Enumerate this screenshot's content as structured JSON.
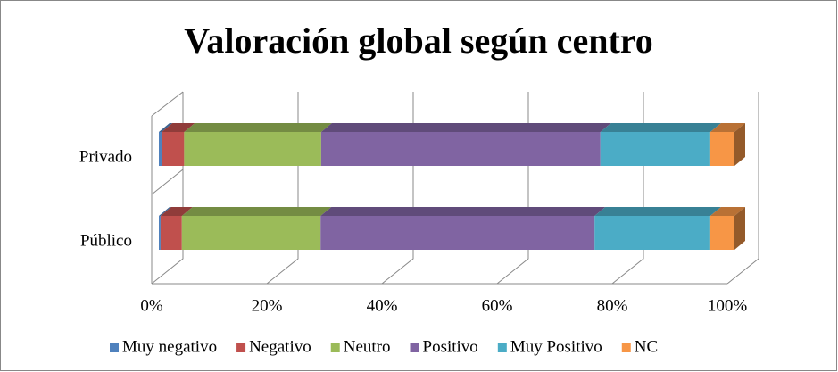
{
  "chart_data": {
    "type": "stacked_bar_horizontal_3d",
    "title": "Valoración global según centro",
    "categories": [
      "Privado",
      "Público"
    ],
    "series": [
      {
        "name": "Muy negativo",
        "color": "#4f81bd",
        "values": [
          0.5,
          0.3
        ]
      },
      {
        "name": "Negativo",
        "color": "#c0504d",
        "values": [
          3.9,
          3.7
        ]
      },
      {
        "name": "Neutro",
        "color": "#9bbb59",
        "values": [
          23.8,
          24.1
        ]
      },
      {
        "name": "Positivo",
        "color": "#8064a2",
        "values": [
          48.5,
          47.6
        ]
      },
      {
        "name": "Muy Positivo",
        "color": "#4bacc6",
        "values": [
          19.1,
          20.1
        ]
      },
      {
        "name": "NC",
        "color": "#f79646",
        "values": [
          4.2,
          4.2
        ]
      }
    ],
    "xlim": [
      0,
      100
    ],
    "xticks": [
      {
        "value": 0,
        "label": "0%"
      },
      {
        "value": 20,
        "label": "20%"
      },
      {
        "value": 40,
        "label": "40%"
      },
      {
        "value": 60,
        "label": "60%"
      },
      {
        "value": 80,
        "label": "80%"
      },
      {
        "value": 100,
        "label": "100%"
      }
    ],
    "grid": true,
    "legend": "bottom"
  }
}
